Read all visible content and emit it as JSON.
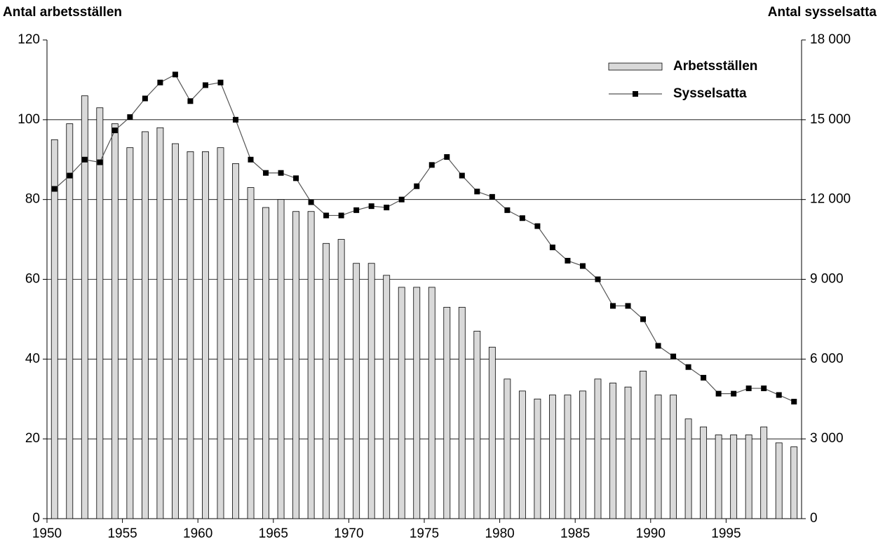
{
  "chart_data": {
    "type": "bar-line",
    "y_label": "Antal arbetsställen",
    "y2_label": "Antal sysselsatta",
    "x": [
      1950,
      1951,
      1952,
      1953,
      1954,
      1955,
      1956,
      1957,
      1958,
      1959,
      1960,
      1961,
      1962,
      1963,
      1964,
      1965,
      1966,
      1967,
      1968,
      1969,
      1970,
      1971,
      1972,
      1973,
      1974,
      1975,
      1976,
      1977,
      1978,
      1979,
      1980,
      1981,
      1982,
      1983,
      1984,
      1985,
      1986,
      1987,
      1988,
      1989,
      1990,
      1991,
      1992,
      1993,
      1994,
      1995,
      1996,
      1997,
      1998,
      1999
    ],
    "xlim": [
      1950,
      2000
    ],
    "xticks": [
      1950,
      1955,
      1960,
      1965,
      1970,
      1975,
      1980,
      1985,
      1990,
      1995
    ],
    "ylim": [
      0,
      120
    ],
    "yticks": [
      0,
      20,
      40,
      60,
      80,
      100,
      120
    ],
    "y2lim": [
      0,
      18000
    ],
    "y2ticks": [
      0,
      {
        "value": 3000,
        "label": "3 000"
      },
      {
        "value": 6000,
        "label": "6 000"
      },
      {
        "value": 9000,
        "label": "9 000"
      },
      {
        "value": 12000,
        "label": "12 000"
      },
      {
        "value": 15000,
        "label": "15 000"
      },
      {
        "value": 18000,
        "label": "18 000"
      }
    ],
    "grid": true,
    "legend": "upper right",
    "series": [
      {
        "name": "Arbetsställen",
        "type": "bar",
        "color": "#d9d9d9",
        "values": [
          95,
          99,
          106,
          103,
          99,
          93,
          97,
          98,
          94,
          92,
          92,
          93,
          89,
          83,
          78,
          80,
          77,
          77,
          69,
          70,
          64,
          64,
          61,
          58,
          58,
          58,
          53,
          53,
          47,
          43,
          35,
          32,
          30,
          31,
          31,
          32,
          35,
          34,
          33,
          37,
          31,
          31,
          25,
          23,
          21,
          21,
          21,
          23,
          19,
          18
        ]
      },
      {
        "name": "Sysselsatta",
        "type": "line",
        "axis": "y2",
        "color": "#000000",
        "values": [
          12400,
          12900,
          13500,
          13400,
          14600,
          15100,
          15800,
          16400,
          16700,
          15700,
          16300,
          16400,
          15000,
          13500,
          13000,
          13000,
          12800,
          11900,
          11400,
          11400,
          11600,
          11750,
          11700,
          12000,
          12500,
          13300,
          13600,
          12900,
          12300,
          12100,
          11600,
          11300,
          11000,
          10200,
          9700,
          9500,
          9000,
          8000,
          8000,
          7500,
          6500,
          6100,
          5700,
          5300,
          4700,
          4700,
          4900,
          4900,
          4650,
          4400
        ]
      }
    ]
  }
}
